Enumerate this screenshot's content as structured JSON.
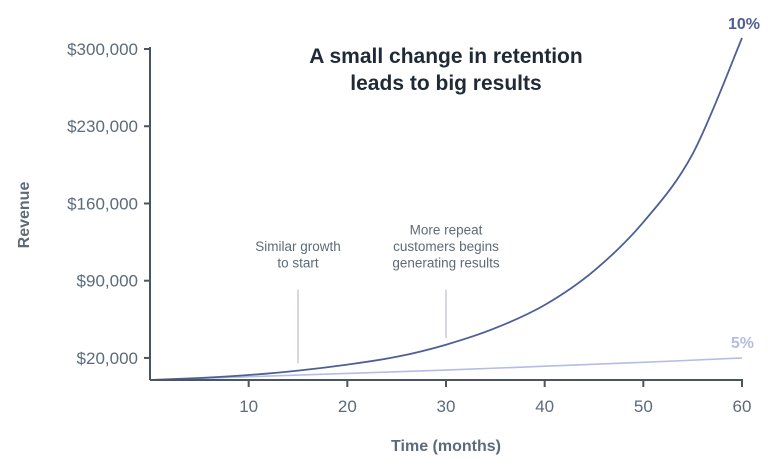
{
  "chart_data": {
    "type": "line",
    "title": "A small change in retention",
    "title_line2": "leads to big results",
    "xlabel": "Time (months)",
    "ylabel": "Revenue",
    "xlim": [
      0,
      60
    ],
    "ylim": [
      0,
      300000
    ],
    "x_ticks": [
      10,
      20,
      30,
      40,
      50,
      60
    ],
    "y_ticks": [
      20000,
      90000,
      160000,
      230000,
      300000
    ],
    "y_tick_labels": [
      "$20,000",
      "$90,000",
      "$160,000",
      "$230,000",
      "$300,000"
    ],
    "grid": false,
    "colors": {
      "series_10": "#4d5f96",
      "series_5": "#b4bde4",
      "axis": "#4a5560",
      "annotation_line": "#c8cdd6"
    },
    "series": [
      {
        "name": "10%",
        "x": [
          0,
          5,
          10,
          15,
          20,
          25,
          30,
          35,
          40,
          45,
          50,
          55,
          60
        ],
        "values": [
          0,
          1800,
          4500,
          8500,
          14000,
          21000,
          32000,
          47000,
          68000,
          99000,
          143000,
          205000,
          310000
        ]
      },
      {
        "name": "5%",
        "x": [
          0,
          10,
          20,
          30,
          40,
          50,
          60
        ],
        "values": [
          0,
          3000,
          6000,
          9000,
          12500,
          16000,
          20000
        ]
      }
    ],
    "annotations": [
      {
        "lines": [
          "Similar growth",
          "to start"
        ],
        "x": 15,
        "y_from": 15000,
        "y_to": 82000
      },
      {
        "lines": [
          "More repeat",
          "customers begins",
          "generating results"
        ],
        "x": 30,
        "y_from": 38000,
        "y_to": 82000
      }
    ]
  }
}
